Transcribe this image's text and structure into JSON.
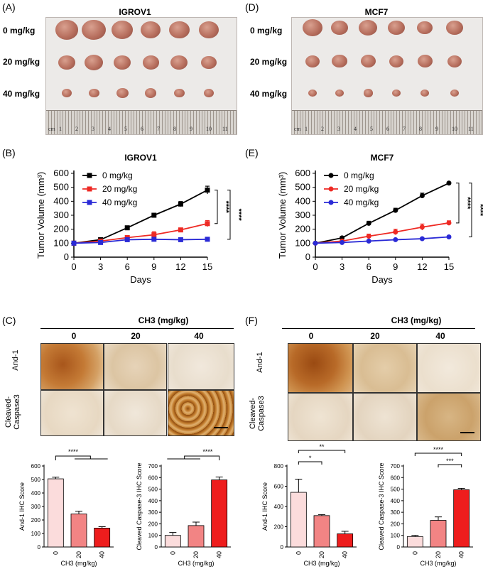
{
  "panels": {
    "A": {
      "label": "(A)",
      "title": "IGROV1",
      "doses": [
        "0 mg/kg",
        "20 mg/kg",
        "40 mg/kg"
      ],
      "ruler_unit": "cm",
      "ruler_ticks": [
        "1",
        "2",
        "3",
        "4",
        "5",
        "6",
        "7",
        "8",
        "9",
        "10",
        "11"
      ]
    },
    "D": {
      "label": "(D)",
      "title": "MCF7",
      "doses": [
        "0 mg/kg",
        "20 mg/kg",
        "40 mg/kg"
      ],
      "ruler_unit": "cm",
      "ruler_ticks": [
        "1",
        "2",
        "3",
        "4",
        "5",
        "6",
        "7",
        "8",
        "9",
        "10",
        "11"
      ]
    },
    "B": {
      "label": "(B)"
    },
    "E": {
      "label": "(E)"
    },
    "C": {
      "label": "(C)",
      "header": "CH3 (mg/kg)",
      "columns": [
        "0",
        "20",
        "40"
      ],
      "rows": [
        "And-1",
        "Cleaved-\nCaspase3"
      ]
    },
    "F": {
      "label": "(F)",
      "header": "CH3 (mg/kg)",
      "columns": [
        "0",
        "20",
        "40"
      ],
      "rows": [
        "And-1",
        "Cleaved-\nCaspase3"
      ]
    }
  },
  "colors": {
    "black": "#000000",
    "red": "#ee2a24",
    "blue": "#2a2ad6",
    "bar0": "#fbdcdc",
    "bar20": "#f28484",
    "bar40": "#ee1d1d"
  },
  "chart_data": [
    {
      "id": "B",
      "type": "line",
      "title": "IGROV1",
      "xlabel": "Days",
      "ylabel": "Tumor Volume (mm³)",
      "x": [
        0,
        3,
        6,
        9,
        12,
        15
      ],
      "xticks": [
        "0",
        "3",
        "6",
        "9",
        "12",
        "15"
      ],
      "yticks": [
        "0",
        "100",
        "200",
        "300",
        "400",
        "500",
        "600"
      ],
      "ylim": [
        0,
        600
      ],
      "series": [
        {
          "name": "0 mg/kg",
          "color": "#000000",
          "marker": "square",
          "values": [
            100,
            125,
            210,
            300,
            380,
            480
          ],
          "err": [
            0,
            6,
            12,
            12,
            18,
            28
          ]
        },
        {
          "name": "20 mg/kg",
          "color": "#ee2a24",
          "marker": "square",
          "values": [
            100,
            115,
            140,
            160,
            195,
            240
          ],
          "err": [
            0,
            5,
            8,
            22,
            8,
            22
          ]
        },
        {
          "name": "40 mg/kg",
          "color": "#2a2ad6",
          "marker": "square",
          "values": [
            100,
            105,
            125,
            128,
            125,
            128
          ],
          "err": [
            0,
            4,
            6,
            6,
            5,
            8
          ]
        }
      ],
      "significance": [
        "****",
        "****"
      ]
    },
    {
      "id": "E",
      "type": "line",
      "title": "MCF7",
      "xlabel": "Days",
      "ylabel": "Tumor Volume (mm³)",
      "x": [
        0,
        3,
        6,
        9,
        12,
        15
      ],
      "xticks": [
        "0",
        "3",
        "6",
        "9",
        "12",
        "15"
      ],
      "yticks": [
        "0",
        "100",
        "200",
        "300",
        "400",
        "500",
        "600"
      ],
      "ylim": [
        0,
        600
      ],
      "series": [
        {
          "name": "0 mg/kg",
          "color": "#000000",
          "marker": "circle",
          "values": [
            100,
            138,
            242,
            335,
            440,
            530
          ],
          "err": [
            0,
            10,
            15,
            15,
            18,
            6
          ]
        },
        {
          "name": "20 mg/kg",
          "color": "#ee2a24",
          "marker": "circle",
          "values": [
            100,
            115,
            150,
            180,
            215,
            245
          ],
          "err": [
            0,
            10,
            15,
            20,
            22,
            15
          ]
        },
        {
          "name": "40 mg/kg",
          "color": "#2a2ad6",
          "marker": "circle",
          "values": [
            100,
            105,
            115,
            125,
            132,
            145
          ],
          "err": [
            0,
            4,
            6,
            6,
            6,
            6
          ]
        }
      ],
      "significance": [
        "****",
        "****"
      ]
    },
    {
      "id": "C1",
      "type": "bar",
      "xlabel": "CH3 (mg/kg)",
      "ylabel": "And-1 IHC Score",
      "categories": [
        "0",
        "20",
        "40"
      ],
      "values": [
        505,
        245,
        140
      ],
      "err": [
        12,
        20,
        10
      ],
      "ylim": [
        0,
        600
      ],
      "yticks": [
        "0",
        "100",
        "200",
        "300",
        "400",
        "500",
        "600"
      ],
      "significance": [
        "****"
      ]
    },
    {
      "id": "C2",
      "type": "bar",
      "xlabel": "CH3 (mg/kg)",
      "ylabel": "Cleaved Caspase-3 IHC Score",
      "categories": [
        "0",
        "20",
        "40"
      ],
      "values": [
        100,
        185,
        580
      ],
      "err": [
        25,
        30,
        25
      ],
      "ylim": [
        0,
        700
      ],
      "yticks": [
        "0",
        "100",
        "200",
        "300",
        "400",
        "500",
        "600",
        "700"
      ],
      "significance": [
        "****"
      ]
    },
    {
      "id": "F1",
      "type": "bar",
      "xlabel": "CH3 (mg/kg)",
      "ylabel": "And-1 IHC Score",
      "categories": [
        "0",
        "20",
        "40"
      ],
      "values": [
        540,
        310,
        130
      ],
      "err": [
        130,
        10,
        25
      ],
      "ylim": [
        0,
        800
      ],
      "yticks": [
        "0",
        "200",
        "400",
        "600",
        "800"
      ],
      "significance": [
        "*",
        "**"
      ]
    },
    {
      "id": "F2",
      "type": "bar",
      "xlabel": "CH3 (mg/kg)",
      "ylabel": "Cleaved Caspase-3 IHC Score",
      "categories": [
        "0",
        "20",
        "40"
      ],
      "values": [
        90,
        230,
        495
      ],
      "err": [
        10,
        30,
        12
      ],
      "ylim": [
        0,
        700
      ],
      "yticks": [
        "0",
        "100",
        "200",
        "300",
        "400",
        "500",
        "600",
        "700"
      ],
      "significance": [
        "***",
        "****"
      ]
    }
  ]
}
